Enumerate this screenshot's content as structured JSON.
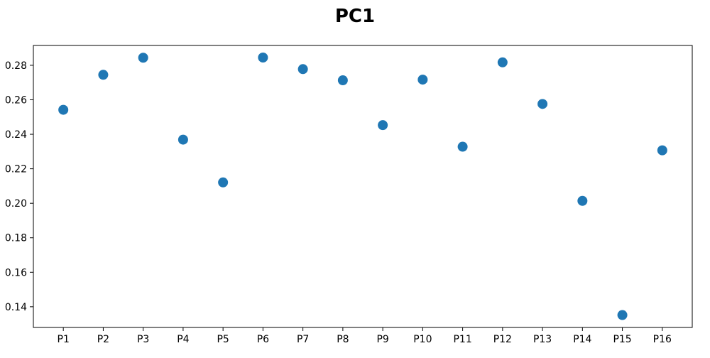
{
  "chart_data": {
    "type": "scatter",
    "title": "PC1",
    "xlabel": "",
    "ylabel": "",
    "categories": [
      "P1",
      "P2",
      "P3",
      "P4",
      "P5",
      "P6",
      "P7",
      "P8",
      "P9",
      "P10",
      "P11",
      "P12",
      "P13",
      "P14",
      "P15",
      "P16"
    ],
    "values": [
      0.2542,
      0.2745,
      0.2844,
      0.2369,
      0.2121,
      0.2845,
      0.2778,
      0.2713,
      0.2453,
      0.2717,
      0.2328,
      0.2817,
      0.2576,
      0.2014,
      0.1352,
      0.2307
    ],
    "y_ticks": [
      "0.14",
      "0.16",
      "0.18",
      "0.20",
      "0.22",
      "0.24",
      "0.26",
      "0.28"
    ],
    "ylim": [
      0.128,
      0.2915
    ],
    "grid": false,
    "legend": "none",
    "marker_color": "#1f77b4"
  }
}
